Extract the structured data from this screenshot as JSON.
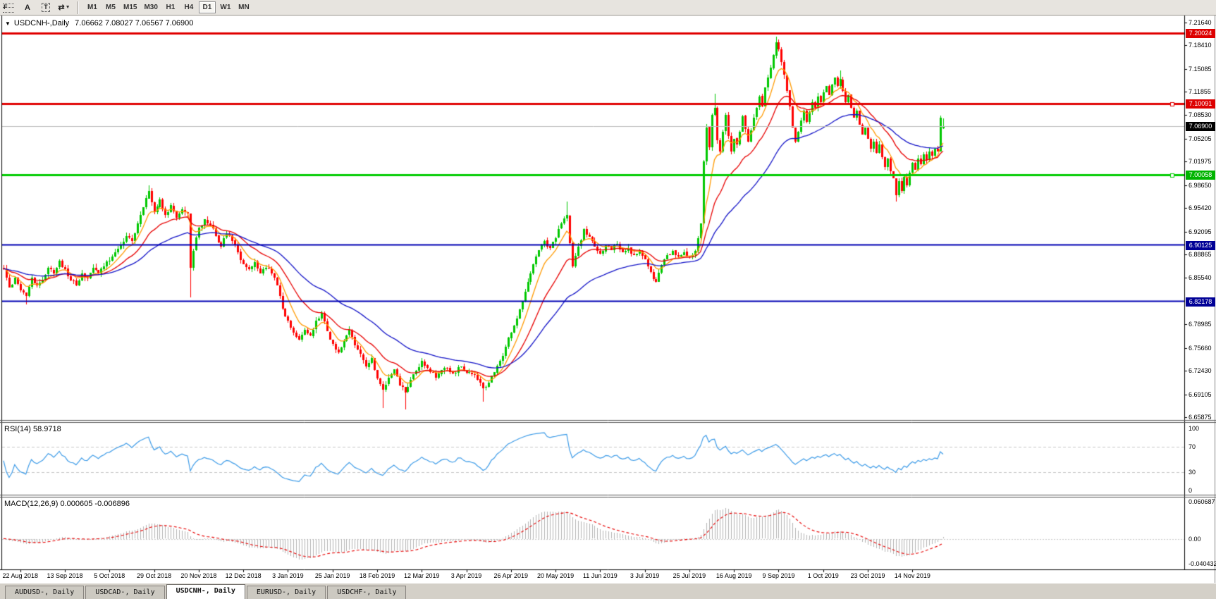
{
  "toolbar": {
    "tools": [
      {
        "name": "fibonacci-tool",
        "glyph": "F",
        "kind": "fib"
      },
      {
        "name": "text-tool",
        "glyph": "A",
        "kind": "plain"
      },
      {
        "name": "text-label-tool",
        "glyph": "T",
        "kind": "box"
      },
      {
        "name": "arrows-tool",
        "glyph": "⇄",
        "kind": "drop",
        "dropdown_glyph": "▼"
      }
    ],
    "timeframes": [
      {
        "label": "M1"
      },
      {
        "label": "M5"
      },
      {
        "label": "M15"
      },
      {
        "label": "M30"
      },
      {
        "label": "H1"
      },
      {
        "label": "H4"
      },
      {
        "label": "D1",
        "active": true
      },
      {
        "label": "W1"
      },
      {
        "label": "MN"
      }
    ]
  },
  "title": {
    "glyph": "▼",
    "symbol": "USDCNH-,Daily",
    "quote": "7.06662 7.08027 7.06567 7.06900"
  },
  "indicator_labels": {
    "rsi": "RSI(14) 58.9718",
    "macd": "MACD(12,26,9) 0.000605 -0.006896"
  },
  "price_axis": {
    "ticks": [
      "7.21640",
      "7.18410",
      "7.15085",
      "7.11855",
      "7.08530",
      "7.05205",
      "7.01975",
      "6.98650",
      "6.95420",
      "6.92095",
      "6.88865",
      "6.85540",
      "6.78985",
      "6.75660",
      "6.72430",
      "6.69105",
      "6.65875"
    ]
  },
  "tabs": [
    {
      "label": "AUDUSD-, Daily"
    },
    {
      "label": "USDCAD-, Daily"
    },
    {
      "label": "USDCNH-, Daily",
      "active": true
    },
    {
      "label": "EURUSD-, Daily"
    },
    {
      "label": "USDCHF-, Daily"
    }
  ],
  "chart_data": {
    "type": "candlestick",
    "symbol": "USDCNH",
    "timeframe": "Daily",
    "ohlc_current": {
      "open": 7.06662,
      "high": 7.08027,
      "low": 7.06567,
      "close": 7.069
    },
    "ylim": [
      6.6588,
      7.224
    ],
    "candle_count": 338,
    "first_label_candle": 6,
    "candles_per_label": 16,
    "x_labels": [
      "22 Aug 2018",
      "13 Sep 2018",
      "5 Oct 2018",
      "29 Oct 2018",
      "20 Nov 2018",
      "12 Dec 2018",
      "3 Jan 2019",
      "25 Jan 2019",
      "18 Feb 2019",
      "12 Mar 2019",
      "3 Apr 2019",
      "26 Apr 2019",
      "20 May 2019",
      "11 Jun 2019",
      "3 Jul 2019",
      "25 Jul 2019",
      "16 Aug 2019",
      "9 Sep 2019",
      "1 Oct 2019",
      "23 Oct 2019",
      "14 Nov 2019"
    ],
    "levels": [
      {
        "text": "7.20024",
        "price": 7.20024,
        "line": "#e00000",
        "width": 3,
        "label_bg": "#dd0000"
      },
      {
        "text": "7.10091",
        "price": 7.10091,
        "line": "#e00000",
        "width": 3,
        "label_bg": "#dd0000",
        "marker": true
      },
      {
        "text": "7.06900",
        "price": 7.069,
        "line": "#bdbdbd",
        "width": 1,
        "label_bg": "#000000",
        "current": true
      },
      {
        "text": "7.00058",
        "price": 7.00058,
        "line": "#00cc00",
        "width": 3,
        "label_bg": "#00b400",
        "marker": true
      },
      {
        "text": "6.90125",
        "price": 6.90125,
        "line": "#0000b4",
        "width": 2,
        "label_bg": "#000096"
      },
      {
        "text": "6.82178",
        "price": 6.82178,
        "line": "#0000b4",
        "width": 2,
        "label_bg": "#000096"
      }
    ],
    "anchors": [
      [
        0,
        6.868
      ],
      [
        2,
        6.842
      ],
      [
        4,
        6.856
      ],
      [
        6,
        6.838
      ],
      [
        8,
        6.83
      ],
      [
        10,
        6.856
      ],
      [
        12,
        6.845
      ],
      [
        14,
        6.852
      ],
      [
        16,
        6.87
      ],
      [
        18,
        6.862
      ],
      [
        20,
        6.88
      ],
      [
        22,
        6.868
      ],
      [
        24,
        6.852
      ],
      [
        26,
        6.845
      ],
      [
        28,
        6.862
      ],
      [
        30,
        6.855
      ],
      [
        32,
        6.87
      ],
      [
        34,
        6.862
      ],
      [
        36,
        6.872
      ],
      [
        38,
        6.88
      ],
      [
        40,
        6.892
      ],
      [
        42,
        6.902
      ],
      [
        44,
        6.915
      ],
      [
        46,
        6.908
      ],
      [
        48,
        6.932
      ],
      [
        50,
        6.955
      ],
      [
        52,
        6.978
      ],
      [
        53,
        6.962
      ],
      [
        54,
        6.948
      ],
      [
        56,
        6.966
      ],
      [
        58,
        6.944
      ],
      [
        60,
        6.958
      ],
      [
        62,
        6.94
      ],
      [
        64,
        6.952
      ],
      [
        66,
        6.946
      ],
      [
        67,
        6.87
      ],
      [
        68,
        6.894
      ],
      [
        70,
        6.926
      ],
      [
        72,
        6.938
      ],
      [
        74,
        6.93
      ],
      [
        76,
        6.915
      ],
      [
        78,
        6.9
      ],
      [
        80,
        6.918
      ],
      [
        82,
        6.908
      ],
      [
        84,
        6.892
      ],
      [
        86,
        6.875
      ],
      [
        88,
        6.868
      ],
      [
        90,
        6.878
      ],
      [
        92,
        6.862
      ],
      [
        94,
        6.87
      ],
      [
        96,
        6.862
      ],
      [
        98,
        6.845
      ],
      [
        100,
        6.812
      ],
      [
        102,
        6.795
      ],
      [
        104,
        6.778
      ],
      [
        106,
        6.768
      ],
      [
        108,
        6.782
      ],
      [
        110,
        6.774
      ],
      [
        112,
        6.795
      ],
      [
        114,
        6.806
      ],
      [
        116,
        6.78
      ],
      [
        118,
        6.762
      ],
      [
        120,
        6.75
      ],
      [
        122,
        6.766
      ],
      [
        124,
        6.782
      ],
      [
        126,
        6.76
      ],
      [
        128,
        6.748
      ],
      [
        130,
        6.73
      ],
      [
        132,
        6.742
      ],
      [
        134,
        6.714
      ],
      [
        136,
        6.698
      ],
      [
        138,
        6.715
      ],
      [
        140,
        6.726
      ],
      [
        142,
        6.704
      ],
      [
        144,
        6.694
      ],
      [
        146,
        6.712
      ],
      [
        148,
        6.724
      ],
      [
        150,
        6.738
      ],
      [
        152,
        6.728
      ],
      [
        155,
        6.715
      ],
      [
        158,
        6.728
      ],
      [
        161,
        6.72
      ],
      [
        164,
        6.73
      ],
      [
        167,
        6.722
      ],
      [
        170,
        6.712
      ],
      [
        172,
        6.7
      ],
      [
        174,
        6.708
      ],
      [
        176,
        6.722
      ],
      [
        178,
        6.738
      ],
      [
        180,
        6.758
      ],
      [
        182,
        6.778
      ],
      [
        184,
        6.798
      ],
      [
        186,
        6.822
      ],
      [
        188,
        6.85
      ],
      [
        190,
        6.875
      ],
      [
        192,
        6.895
      ],
      [
        194,
        6.908
      ],
      [
        196,
        6.898
      ],
      [
        198,
        6.912
      ],
      [
        200,
        6.932
      ],
      [
        202,
        6.944
      ],
      [
        203,
        6.905
      ],
      [
        204,
        6.872
      ],
      [
        206,
        6.9
      ],
      [
        208,
        6.924
      ],
      [
        210,
        6.914
      ],
      [
        212,
        6.9
      ],
      [
        214,
        6.89
      ],
      [
        216,
        6.902
      ],
      [
        218,
        6.895
      ],
      [
        220,
        6.904
      ],
      [
        222,
        6.892
      ],
      [
        224,
        6.898
      ],
      [
        226,
        6.888
      ],
      [
        228,
        6.894
      ],
      [
        230,
        6.882
      ],
      [
        232,
        6.864
      ],
      [
        234,
        6.85
      ],
      [
        236,
        6.874
      ],
      [
        238,
        6.888
      ],
      [
        240,
        6.894
      ],
      [
        242,
        6.886
      ],
      [
        244,
        6.892
      ],
      [
        246,
        6.886
      ],
      [
        248,
        6.894
      ],
      [
        250,
        6.932
      ],
      [
        251,
        7.02
      ],
      [
        252,
        7.068
      ],
      [
        253,
        7.04
      ],
      [
        254,
        7.086
      ],
      [
        255,
        7.096
      ],
      [
        256,
        7.05
      ],
      [
        257,
        7.034
      ],
      [
        258,
        7.062
      ],
      [
        259,
        7.086
      ],
      [
        260,
        7.056
      ],
      [
        261,
        7.034
      ],
      [
        262,
        7.052
      ],
      [
        263,
        7.044
      ],
      [
        264,
        7.062
      ],
      [
        265,
        7.084
      ],
      [
        266,
        7.066
      ],
      [
        267,
        7.048
      ],
      [
        268,
        7.064
      ],
      [
        269,
        7.082
      ],
      [
        270,
        7.096
      ],
      [
        271,
        7.112
      ],
      [
        272,
        7.098
      ],
      [
        273,
        7.124
      ],
      [
        274,
        7.138
      ],
      [
        275,
        7.152
      ],
      [
        276,
        7.17
      ],
      [
        277,
        7.188
      ],
      [
        278,
        7.178
      ],
      [
        279,
        7.16
      ],
      [
        280,
        7.142
      ],
      [
        281,
        7.12
      ],
      [
        282,
        7.098
      ],
      [
        283,
        7.068
      ],
      [
        284,
        7.048
      ],
      [
        285,
        7.062
      ],
      [
        286,
        7.078
      ],
      [
        287,
        7.092
      ],
      [
        288,
        7.076
      ],
      [
        289,
        7.09
      ],
      [
        290,
        7.104
      ],
      [
        291,
        7.096
      ],
      [
        292,
        7.112
      ],
      [
        293,
        7.104
      ],
      [
        294,
        7.118
      ],
      [
        295,
        7.126
      ],
      [
        296,
        7.114
      ],
      [
        297,
        7.128
      ],
      [
        298,
        7.138
      ],
      [
        299,
        7.126
      ],
      [
        300,
        7.136
      ],
      [
        301,
        7.12
      ],
      [
        302,
        7.104
      ],
      [
        303,
        7.114
      ],
      [
        304,
        7.096
      ],
      [
        305,
        7.082
      ],
      [
        306,
        7.092
      ],
      [
        307,
        7.072
      ],
      [
        308,
        7.058
      ],
      [
        309,
        7.068
      ],
      [
        310,
        7.052
      ],
      [
        311,
        7.038
      ],
      [
        312,
        7.048
      ],
      [
        313,
        7.032
      ],
      [
        314,
        7.044
      ],
      [
        315,
        7.026
      ],
      [
        316,
        7.012
      ],
      [
        317,
        7.024
      ],
      [
        318,
        7.006
      ],
      [
        319,
        6.996
      ],
      [
        320,
        6.972
      ],
      [
        321,
        6.992
      ],
      [
        322,
        6.978
      ],
      [
        323,
        6.998
      ],
      [
        324,
        6.986
      ],
      [
        325,
        7.004
      ],
      [
        326,
        7.018
      ],
      [
        327,
        7.008
      ],
      [
        328,
        7.024
      ],
      [
        329,
        7.016
      ],
      [
        330,
        7.03
      ],
      [
        331,
        7.022
      ],
      [
        332,
        7.034
      ],
      [
        333,
        7.028
      ],
      [
        334,
        7.038
      ],
      [
        335,
        7.034
      ],
      [
        336,
        7.082
      ],
      [
        337,
        7.069
      ]
    ],
    "wick_overrides": [
      {
        "i": 8,
        "low": 6.818
      },
      {
        "i": 52,
        "high": 6.986
      },
      {
        "i": 67,
        "low": 6.828
      },
      {
        "i": 136,
        "low": 6.672
      },
      {
        "i": 144,
        "low": 6.67
      },
      {
        "i": 172,
        "low": 6.681
      },
      {
        "i": 202,
        "high": 6.963
      },
      {
        "i": 255,
        "high": 7.116
      },
      {
        "i": 277,
        "high": 7.196
      },
      {
        "i": 278,
        "high": 7.192
      },
      {
        "i": 300,
        "high": 7.148
      },
      {
        "i": 320,
        "low": 6.963
      },
      {
        "i": 336,
        "high": 7.085
      }
    ],
    "noise": 0.0032,
    "wick": 0.0055,
    "seed": 20191127,
    "history_bars": 60,
    "moving_averages": [
      {
        "period": 8,
        "color": "#ff9a00"
      },
      {
        "period": 20,
        "color": "#e80000"
      },
      {
        "period": 45,
        "color": "#1414c8"
      }
    ],
    "rsi": {
      "period": 14,
      "levels": [
        70,
        30
      ],
      "color": "#3c9be8",
      "current": 58.9718,
      "scale_labels": [
        {
          "value": 100,
          "text": "100"
        },
        {
          "value": 70,
          "text": "70"
        },
        {
          "value": 30,
          "text": "30"
        },
        {
          "value": 0,
          "text": "0"
        }
      ]
    },
    "macd": {
      "fast": 12,
      "slow": 26,
      "signal_period": 9,
      "ylim": [
        -0.040432,
        0.060687
      ],
      "scale_labels": [
        {
          "value": 0.060687,
          "text": "0.060687"
        },
        {
          "value": 0,
          "text": "0.00"
        },
        {
          "value": -0.040432,
          "text": "-0.040432"
        }
      ],
      "histogram_color": "#b4b4b4",
      "signal_color": "#e80000",
      "current_macd": 0.000605,
      "current_signal": -0.006896
    },
    "colors": {
      "bg": "#ffffff",
      "up": "#00c800",
      "down": "#ff0000",
      "axis": "#000000",
      "separator": "#5a5a5a",
      "rsi_level_line": "#c8c8c8"
    }
  }
}
